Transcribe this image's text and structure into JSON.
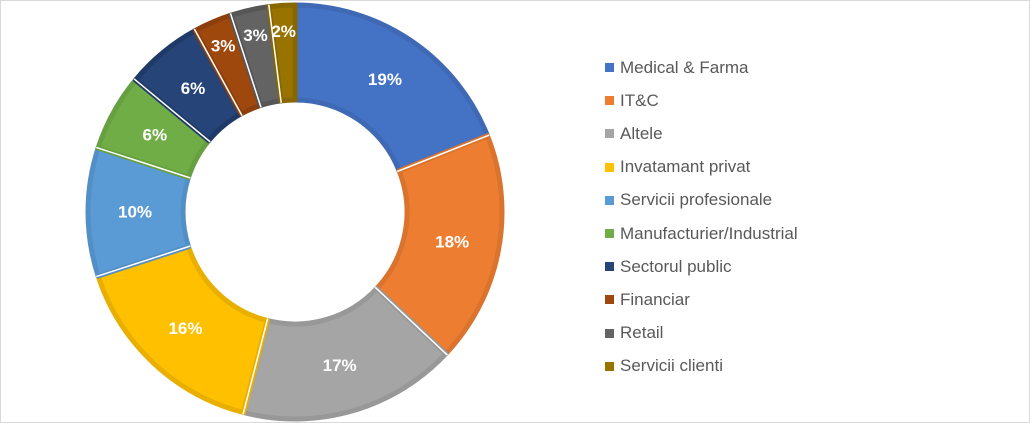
{
  "chart_data": {
    "type": "pie",
    "variant": "donut",
    "title": "",
    "legend_position": "right",
    "unit": "%",
    "series": [
      {
        "name": "Medical & Farma",
        "value": 19,
        "label": "19%",
        "color": "#4472C4",
        "edge": "#3F69B5"
      },
      {
        "name": "IT&C",
        "value": 18,
        "label": "18%",
        "color": "#ED7D31",
        "edge": "#D9732D"
      },
      {
        "name": "Altele",
        "value": 17,
        "label": "17%",
        "color": "#A5A5A5",
        "edge": "#989898"
      },
      {
        "name": "Invatamant privat",
        "value": 16,
        "label": "16%",
        "color": "#FFC000",
        "edge": "#E8AF00"
      },
      {
        "name": "Servicii profesionale",
        "value": 10,
        "label": "10%",
        "color": "#5B9BD5",
        "edge": "#528FC6"
      },
      {
        "name": "Manufacturier/Industrial",
        "value": 6,
        "label": "6%",
        "color": "#70AD47",
        "edge": "#66A040"
      },
      {
        "name": "Sectorul public",
        "value": 6,
        "label": "6%",
        "color": "#264478",
        "edge": "#1F3A68"
      },
      {
        "name": "Financiar",
        "value": 3,
        "label": "3%",
        "color": "#9E480E",
        "edge": "#8C3F0C"
      },
      {
        "name": "Retail",
        "value": 3,
        "label": "3%",
        "color": "#636363",
        "edge": "#565656"
      },
      {
        "name": "Servicii clienti",
        "value": 2,
        "label": "2%",
        "color": "#997300",
        "edge": "#886600"
      }
    ]
  }
}
